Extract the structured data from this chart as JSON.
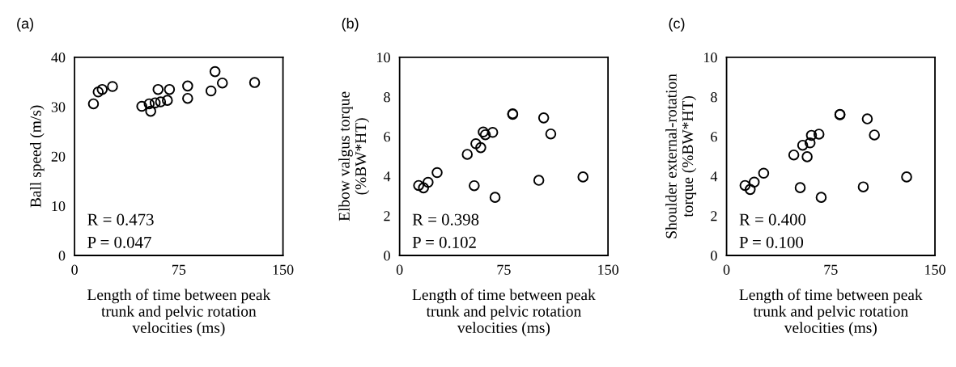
{
  "chart_data": [
    {
      "type": "scatter",
      "title": "(a)",
      "xlabel": "Length of time between peak\ntrunk and pelvic rotation\nvelocities (ms)",
      "ylabel": "Ball speed (m/s)",
      "xlim": [
        0,
        150
      ],
      "xticks": [
        0,
        75,
        150
      ],
      "ylim": [
        0,
        40
      ],
      "yticks": [
        0,
        10,
        20,
        30,
        40
      ],
      "marker": "circle",
      "annotations": [
        "R = 0.473",
        "P = 0.047"
      ],
      "series": [
        {
          "color": "#000000",
          "x": [
            13.6,
            17.0,
            19.9,
            27.3,
            48.4,
            53.7,
            54.8,
            58.0,
            61.9,
            66.8,
            60.1,
            68.3,
            81.4,
            81.4,
            98.2,
            101.1,
            106.4,
            129.6
          ],
          "values": [
            30.6,
            33.0,
            33.5,
            34.1,
            30.1,
            30.6,
            29.1,
            30.8,
            31.0,
            31.3,
            33.5,
            33.5,
            34.2,
            31.7,
            33.2,
            37.1,
            34.8,
            34.9
          ]
        }
      ]
    },
    {
      "type": "scatter",
      "title": "(b)",
      "xlabel": "Length of time between peak\ntrunk and pelvic rotation\nvelocities (ms)",
      "ylabel": "Elbow valgus torque\n(%BW*HT)",
      "xlim": [
        0,
        150
      ],
      "xticks": [
        0,
        75,
        150
      ],
      "ylim": [
        0,
        10
      ],
      "yticks": [
        0,
        2,
        4,
        6,
        8,
        10
      ],
      "marker": "circle",
      "annotations": [
        "R = 0.398",
        "P = 0.102"
      ],
      "series": [
        {
          "color": "#000000",
          "x": [
            13.7,
            17.2,
            20.5,
            27.0,
            48.7,
            53.7,
            54.9,
            58.4,
            60.2,
            61.7,
            67.0,
            68.7,
            81.4,
            81.4,
            100.2,
            103.7,
            108.8,
            132.0
          ],
          "values": [
            3.53,
            3.41,
            3.69,
            4.18,
            5.1,
            3.52,
            5.64,
            5.44,
            6.23,
            6.09,
            6.21,
            2.93,
            7.15,
            7.12,
            3.79,
            6.94,
            6.13,
            3.96
          ]
        }
      ]
    },
    {
      "type": "scatter",
      "title": "(c)",
      "xlabel": "Length of time between peak\ntrunk and pelvic rotation\nvelocities (ms)",
      "ylabel": "Shoulder external-rotation\ntorque (%BW*HT)",
      "xlim": [
        0,
        150
      ],
      "xticks": [
        0,
        75,
        150
      ],
      "ylim": [
        0,
        10
      ],
      "yticks": [
        0,
        2,
        4,
        6,
        8,
        10
      ],
      "marker": "circle",
      "annotations": [
        "R = 0.400",
        "P = 0.100"
      ],
      "series": [
        {
          "color": "#000000",
          "x": [
            13.3,
            17.0,
            19.9,
            26.7,
            48.4,
            53.0,
            54.8,
            58.0,
            60.1,
            61.1,
            66.5,
            68.1,
            81.6,
            81.6,
            98.4,
            101.3,
            106.4,
            129.6
          ],
          "values": [
            3.53,
            3.33,
            3.7,
            4.15,
            5.07,
            3.42,
            5.56,
            4.98,
            5.68,
            6.06,
            6.12,
            2.93,
            7.12,
            7.1,
            3.46,
            6.89,
            6.08,
            3.96
          ]
        }
      ]
    }
  ]
}
